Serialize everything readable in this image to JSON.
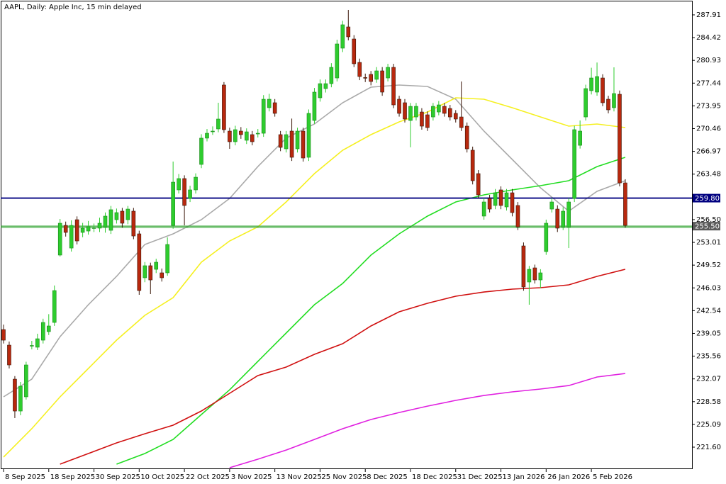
{
  "chart_data": {
    "type": "candlestick",
    "title": "AAPL, Daily:  Apple Inc, 15 min delayed",
    "up_color": "#2ecc2e",
    "down_color": "#b8280e",
    "open": [
      239.64,
      237.25,
      232.03,
      227.14,
      229.32,
      237.14,
      236.93,
      238.01,
      239.32,
      240.73,
      251.06,
      255.62,
      252.14,
      256.49,
      254.54,
      254.75,
      255.19,
      255.19,
      255.4,
      254.86,
      256.49,
      257.8,
      256.49,
      257.8,
      254.32,
      247.58,
      249.43,
      248.88,
      248.34,
      248.34,
      255.62,
      261.06,
      262.8,
      259.75,
      261.06,
      264.97,
      269.0,
      270.0,
      270.41,
      277.15,
      270.08,
      268.45,
      270.08,
      268.67,
      269.54,
      269.7,
      269.75,
      273.67,
      274.43,
      269.54,
      267.36,
      270.08,
      267.36,
      270.08,
      266.06,
      271.71,
      275.19,
      276.6,
      277.36,
      278.23,
      282.8,
      286.06,
      284.21,
      280.62,
      278.3,
      278.78,
      278.02,
      279.32,
      278.23,
      279.86,
      274.97,
      274.43,
      271.71,
      272.25,
      273.01,
      272.58,
      272.25,
      273.01,
      273.88,
      273.55,
      272.8,
      272.25,
      270.84,
      267.15,
      263.56,
      257.04,
      259.75,
      258.67,
      261.06,
      258.45,
      260.62,
      258.67,
      252.47,
      246.93,
      249.1,
      247.25,
      251.6,
      258.12,
      258.12,
      255.4,
      255.4,
      259.75,
      267.9,
      272.25,
      276.28,
      276.06,
      278.23,
      274.97,
      273.67,
      275.73,
      262.14
    ],
    "high": [
      240.4,
      237.8,
      232.5,
      231.6,
      234.7,
      237.9,
      239.0,
      241.3,
      242.0,
      246.4,
      256.6,
      256.2,
      256.4,
      257.0,
      256.0,
      256.3,
      255.9,
      256.8,
      257.6,
      258.6,
      258.2,
      258.3,
      258.6,
      258.3,
      254.8,
      250.0,
      249.9,
      250.5,
      249.0,
      253.78,
      265.41,
      263.5,
      263.3,
      261.7,
      263.6,
      269.6,
      270.4,
      270.8,
      274.43,
      277.6,
      270.6,
      270.9,
      270.7,
      270.5,
      270.1,
      270.4,
      275.6,
      275.8,
      275.0,
      270.1,
      270.1,
      272.0,
      270.6,
      270.6,
      273.4,
      276.7,
      278.0,
      278.0,
      280.5,
      284.1,
      287.0,
      288.67,
      284.8,
      281.2,
      278.9,
      279.3,
      279.9,
      279.9,
      280.4,
      280.4,
      275.5,
      275.0,
      274.4,
      274.4,
      273.6,
      273.1,
      274.4,
      274.7,
      274.4,
      274.1,
      273.3,
      277.69,
      271.4,
      267.7,
      264.1,
      259.8,
      260.3,
      261.2,
      261.6,
      261.2,
      261.2,
      259.2,
      253.0,
      249.4,
      249.6,
      248.9,
      256.5,
      259.8,
      258.7,
      258.4,
      259.8,
      270.9,
      271.71,
      277.2,
      279.8,
      280.6,
      278.8,
      275.5,
      279.86,
      276.3,
      262.7
    ],
    "low": [
      237.5,
      233.67,
      226.06,
      226.5,
      228.9,
      236.6,
      236.5,
      237.5,
      238.8,
      240.2,
      250.84,
      253.9,
      251.6,
      252.7,
      253.8,
      254.2,
      254.6,
      254.6,
      254.5,
      254.3,
      255.9,
      255.3,
      255.8,
      253.5,
      244.97,
      246.9,
      245.08,
      248.3,
      247.0,
      247.9,
      255.1,
      260.5,
      255.62,
      259.2,
      260.5,
      264.4,
      268.5,
      269.5,
      269.9,
      269.8,
      267.36,
      267.9,
      268.9,
      268.1,
      267.9,
      269.1,
      269.2,
      273.1,
      272.3,
      267.0,
      266.8,
      265.5,
      266.8,
      265.4,
      265.5,
      271.2,
      274.6,
      276.0,
      276.8,
      277.7,
      282.2,
      284.0,
      279.9,
      277.9,
      277.6,
      277.1,
      277.5,
      275.5,
      277.7,
      273.6,
      272.3,
      271.4,
      267.6,
      271.7,
      270.3,
      270.1,
      271.7,
      272.5,
      272.3,
      271.7,
      271.4,
      270.1,
      266.8,
      261.9,
      259.75,
      256.49,
      257.6,
      258.1,
      258.1,
      257.9,
      257.0,
      254.9,
      245.6,
      243.45,
      246.7,
      246.0,
      251.1,
      257.6,
      254.6,
      254.9,
      252.14,
      259.2,
      267.4,
      271.7,
      275.7,
      275.5,
      273.9,
      272.8,
      273.1,
      261.6,
      255.3
    ],
    "close": [
      238.01,
      234.21,
      227.14,
      230.95,
      234.21,
      237.2,
      238.23,
      240.73,
      240.19,
      245.62,
      255.95,
      254.54,
      255.62,
      253.23,
      255.19,
      255.4,
      255.25,
      255.95,
      257.04,
      258.02,
      257.58,
      255.95,
      258.12,
      253.99,
      245.62,
      249.43,
      247.25,
      249.97,
      247.58,
      252.69,
      262.25,
      262.8,
      258.67,
      261.06,
      263.01,
      269.0,
      269.75,
      270.08,
      271.93,
      270.3,
      268.45,
      270.3,
      269.54,
      269.97,
      268.45,
      269.75,
      274.97,
      274.97,
      272.8,
      267.58,
      269.54,
      266.06,
      270.08,
      265.95,
      272.8,
      276.06,
      277.36,
      277.36,
      279.86,
      283.45,
      286.39,
      284.54,
      280.41,
      278.45,
      278.23,
      277.69,
      279.32,
      276.06,
      279.86,
      274.1,
      272.8,
      271.93,
      273.88,
      273.88,
      270.84,
      270.62,
      273.88,
      274.1,
      272.8,
      272.25,
      271.93,
      270.62,
      267.36,
      262.47,
      260.3,
      259.21,
      258.12,
      260.62,
      258.67,
      260.62,
      257.58,
      255.4,
      246.17,
      248.88,
      247.25,
      248.34,
      255.95,
      259.21,
      255.19,
      257.8,
      259.21,
      270.3,
      270.08,
      276.6,
      278.23,
      278.45,
      274.43,
      273.34,
      275.84,
      262.14,
      255.62
    ],
    "line_x": [
      0,
      5,
      10,
      15,
      20,
      25,
      30,
      35,
      40,
      45,
      50,
      55,
      60,
      65,
      70,
      75,
      80,
      85,
      90,
      95,
      100,
      105,
      110
    ],
    "lines": [
      {
        "color": "#a9a9a9",
        "values": [
          229.32,
          232.03,
          238.55,
          243.45,
          247.8,
          252.69,
          254.32,
          256.49,
          259.75,
          264.64,
          269.0,
          271.17,
          274.43,
          276.82,
          277.15,
          276.93,
          274.97,
          270.08,
          265.73,
          261.38,
          257.8,
          260.84,
          262.47
        ]
      },
      {
        "color": "#f5f020",
        "values": [
          220.08,
          224.43,
          229.32,
          233.67,
          238.01,
          241.82,
          244.54,
          249.97,
          253.23,
          255.4,
          259.21,
          263.56,
          267.15,
          269.54,
          271.49,
          273.01,
          275.19,
          274.97,
          273.67,
          272.25,
          270.84,
          271.17,
          270.62
        ]
      },
      {
        "color": "#22dd22",
        "values": [
          null,
          null,
          null,
          null,
          218.99,
          220.62,
          222.79,
          226.6,
          230.4,
          234.75,
          239.1,
          243.45,
          246.71,
          251.06,
          254.32,
          257.04,
          259.21,
          260.3,
          261.06,
          261.71,
          262.47,
          264.64,
          266.06
        ]
      },
      {
        "color": "#d01010",
        "values": [
          null,
          null,
          218.99,
          220.62,
          222.25,
          223.66,
          224.97,
          227.14,
          229.86,
          232.58,
          233.88,
          235.84,
          237.47,
          240.19,
          242.36,
          243.67,
          244.75,
          245.4,
          245.84,
          246.06,
          246.49,
          247.8,
          248.88
        ]
      },
      {
        "color": "#e020e0",
        "values": [
          null,
          null,
          null,
          null,
          null,
          null,
          null,
          null,
          218.45,
          219.75,
          221.16,
          222.79,
          224.43,
          225.84,
          226.92,
          227.9,
          228.77,
          229.53,
          230.08,
          230.51,
          231.05,
          232.36,
          232.9
        ]
      }
    ],
    "levels": [
      {
        "value": 259.8,
        "label": "259.80",
        "color": "#000080",
        "label_color": "#000080"
      },
      {
        "value": 255.5,
        "label": "255.50",
        "color": "#2ca02c",
        "label_color": "#5a5a5a"
      }
    ],
    "xlim": [
      -0.5,
      121.8
    ],
    "xticks": [
      {
        "value": 0,
        "label": "8 Sep 2025"
      },
      {
        "value": 8,
        "label": "18 Sep 2025"
      },
      {
        "value": 16,
        "label": "30 Sep 2025"
      },
      {
        "value": 24,
        "label": "10 Oct 2025"
      },
      {
        "value": 32,
        "label": "22 Oct 2025"
      },
      {
        "value": 40,
        "label": "3 Nov 2025"
      },
      {
        "value": 48,
        "label": "13 Nov 2025"
      },
      {
        "value": 56,
        "label": "25 Nov 2025"
      },
      {
        "value": 64,
        "label": "8 Dec 2025"
      },
      {
        "value": 72,
        "label": "18 Dec 2025"
      },
      {
        "value": 80,
        "label": "31 Dec 2025"
      },
      {
        "value": 88,
        "label": "13 Jan 2026"
      },
      {
        "value": 96,
        "label": "26 Jan 2026"
      },
      {
        "value": 104,
        "label": "5 Feb 2026"
      }
    ],
    "ylim": [
      218.34,
      290.19
    ],
    "yticks": [
      287.91,
      284.42,
      280.93,
      277.44,
      273.95,
      270.46,
      266.97,
      263.48,
      {
        "value": 256.5,
        "label": "256.50"
      },
      253.01,
      249.52,
      246.03,
      242.54,
      239.05,
      235.56,
      232.07,
      228.58,
      225.09,
      {
        "value": 221.6,
        "label": "221.60"
      }
    ]
  }
}
